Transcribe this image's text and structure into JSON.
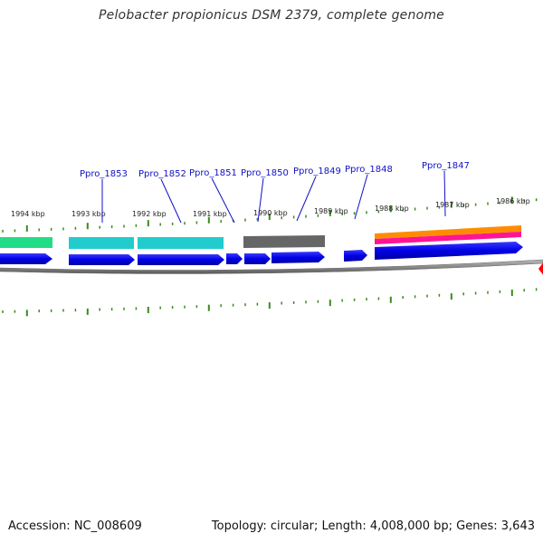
{
  "title": "Pelobacter propionicus DSM 2379, complete genome",
  "footer": {
    "accession": "Accession: NC_008609",
    "summary": "Topology: circular; Length: 4,008,000 bp; Genes: 3,643"
  },
  "colors": {
    "tick": "#3a8a1e",
    "cds": "#0000e6",
    "backbone": "#8a8a8a",
    "label": "#1010c8",
    "marker": "#ff0000"
  },
  "kbp_labels": [
    "1994 kbp",
    "1993 kbp",
    "1992 kbp",
    "1991 kbp",
    "1990 kbp",
    "1989 kbp",
    "1988 kbp",
    "1987 kbp",
    "1986 kbp"
  ],
  "gene_labels": [
    "Ppro_1853",
    "Ppro_1852",
    "Ppro_1851",
    "Ppro_1850",
    "Ppro_1849",
    "Ppro_1848",
    "Ppro_1847"
  ],
  "feature_colors": [
    "#22dd88",
    "#22cccc",
    "#22cccc",
    "#666666",
    "#ff8c00",
    "#ff1493"
  ]
}
